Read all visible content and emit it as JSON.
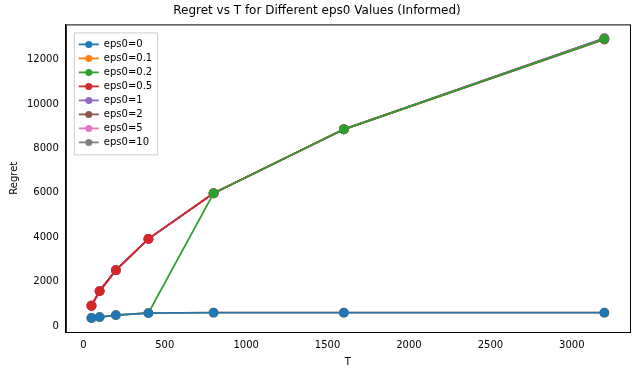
{
  "chart_data": {
    "type": "line",
    "title": "Regret vs T for Different eps0 Values (Informed)",
    "x_label": "T",
    "y_label": "Regret",
    "x": [
      50,
      100,
      200,
      400,
      800,
      1600,
      3200
    ],
    "series": [
      {
        "name": "eps0=0",
        "color": "#1f77b4",
        "values": [
          370,
          410,
          500,
          590,
          610,
          610,
          610
        ]
      },
      {
        "name": "eps0=0.1",
        "color": "#ff7f0e",
        "values": [
          370,
          410,
          500,
          590,
          610,
          610,
          610
        ]
      },
      {
        "name": "eps0=0.2",
        "color": "#2ca02c",
        "values": [
          370,
          410,
          500,
          600,
          5980,
          8860,
          12920
        ]
      },
      {
        "name": "eps0=0.5",
        "color": "#d62728",
        "values": [
          920,
          1580,
          2520,
          3930,
          5980,
          8860,
          12900
        ]
      },
      {
        "name": "eps0=1",
        "color": "#9467bd",
        "values": [
          920,
          1580,
          2520,
          3930,
          5980,
          8860,
          12950
        ]
      },
      {
        "name": "eps0=2",
        "color": "#8c564b",
        "values": [
          920,
          1580,
          2520,
          3930,
          5980,
          8860,
          12950
        ]
      },
      {
        "name": "eps0=5",
        "color": "#e377c2",
        "values": [
          920,
          1580,
          2520,
          3930,
          5980,
          8860,
          12950
        ]
      },
      {
        "name": "eps0=10",
        "color": "#7f7f7f",
        "values": [
          920,
          1580,
          2520,
          3930,
          5980,
          8860,
          12950
        ]
      }
    ],
    "xlim": [
      -107.5,
      3357.5
    ],
    "xticks": [
      0,
      500,
      1000,
      1500,
      2000,
      2500,
      3000
    ],
    "ylim": [
      -260,
      13580
    ],
    "yticks": [
      0,
      2000,
      4000,
      6000,
      8000,
      10000,
      12000
    ],
    "grid": false,
    "legend": "upper left",
    "marker": "circle",
    "line_style": "solid"
  }
}
